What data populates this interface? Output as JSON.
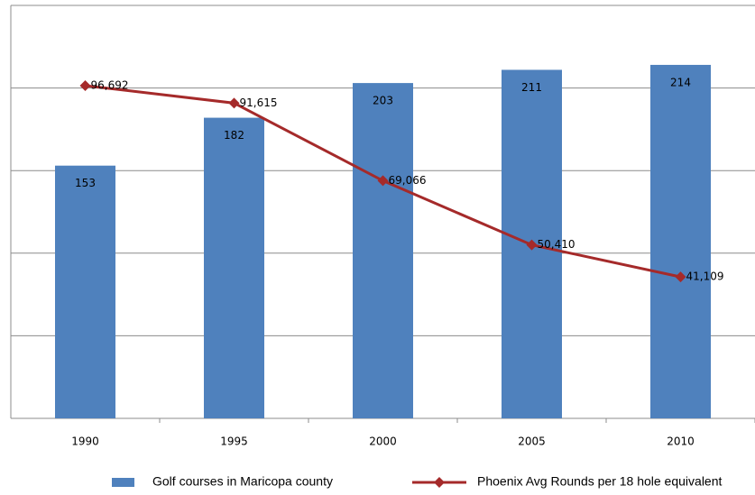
{
  "chart_data": {
    "type": "bar-line",
    "categories": [
      "1990",
      "1995",
      "2000",
      "2005",
      "2010"
    ],
    "series": [
      {
        "name": "Golf courses in Maricopa county",
        "type": "bar",
        "color": "#4f81bd",
        "values": [
          153,
          182,
          203,
          211,
          214
        ]
      },
      {
        "name": "Phoenix Avg Rounds per 18 hole equivalent",
        "type": "line",
        "axis": "y2",
        "color": "#a52a2a",
        "values": [
          96692,
          91615,
          69066,
          50410,
          41109
        ],
        "value_labels": [
          "96,692",
          "91,615",
          "69,066",
          "50,410",
          "41,109"
        ]
      }
    ],
    "ylim": [
      0,
      250
    ],
    "yticks": [
      0,
      50,
      100,
      150,
      200,
      250
    ],
    "y2lim": [
      0,
      120000
    ],
    "grid": true,
    "legend": "bottom"
  }
}
